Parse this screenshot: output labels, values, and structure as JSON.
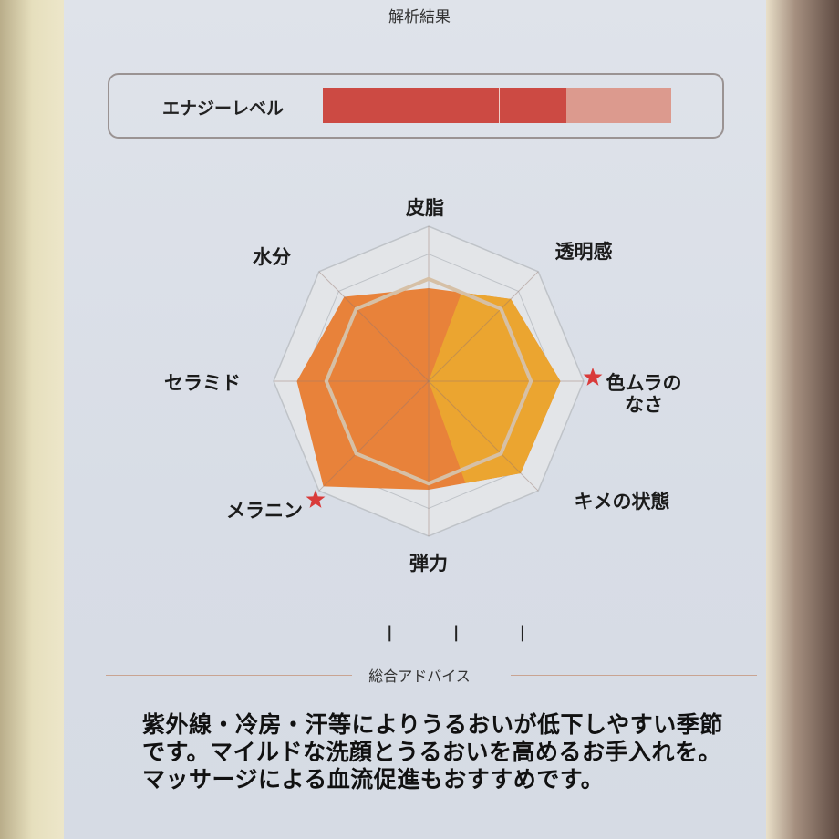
{
  "title": "解析結果",
  "energy": {
    "label": "エナジーレベル",
    "level_percent": 70,
    "fill_color": "#cc4a43",
    "track_color": "#dc9a8e"
  },
  "chart_data": {
    "type": "radar",
    "axes": [
      "皮脂",
      "透明感",
      "色ムラのなさ",
      "キメの状態",
      "弾力",
      "メラニン",
      "セラミド",
      "水分"
    ],
    "values": [
      0.6,
      0.75,
      0.85,
      0.84,
      0.7,
      0.96,
      0.85,
      0.77
    ],
    "reference_ring": 0.66,
    "range": [
      0,
      1
    ],
    "starred_axes": [
      "色ムラのなさ",
      "メラニン"
    ],
    "colors": {
      "fill": "#e8823a",
      "highlight": "#eba530",
      "reference": "#d6c0a6",
      "grid": "#bfc3c8",
      "star": "#d93a3a"
    }
  },
  "ticks": "| | |",
  "advice": {
    "title": "総合アドバイス",
    "text": "紫外線・冷房・汗等によりうるおいが低下しやすい季節です。マイルドな洗顔とうるおいを高めるお手入れを。マッサージによる血流促進もおすすめです。"
  }
}
